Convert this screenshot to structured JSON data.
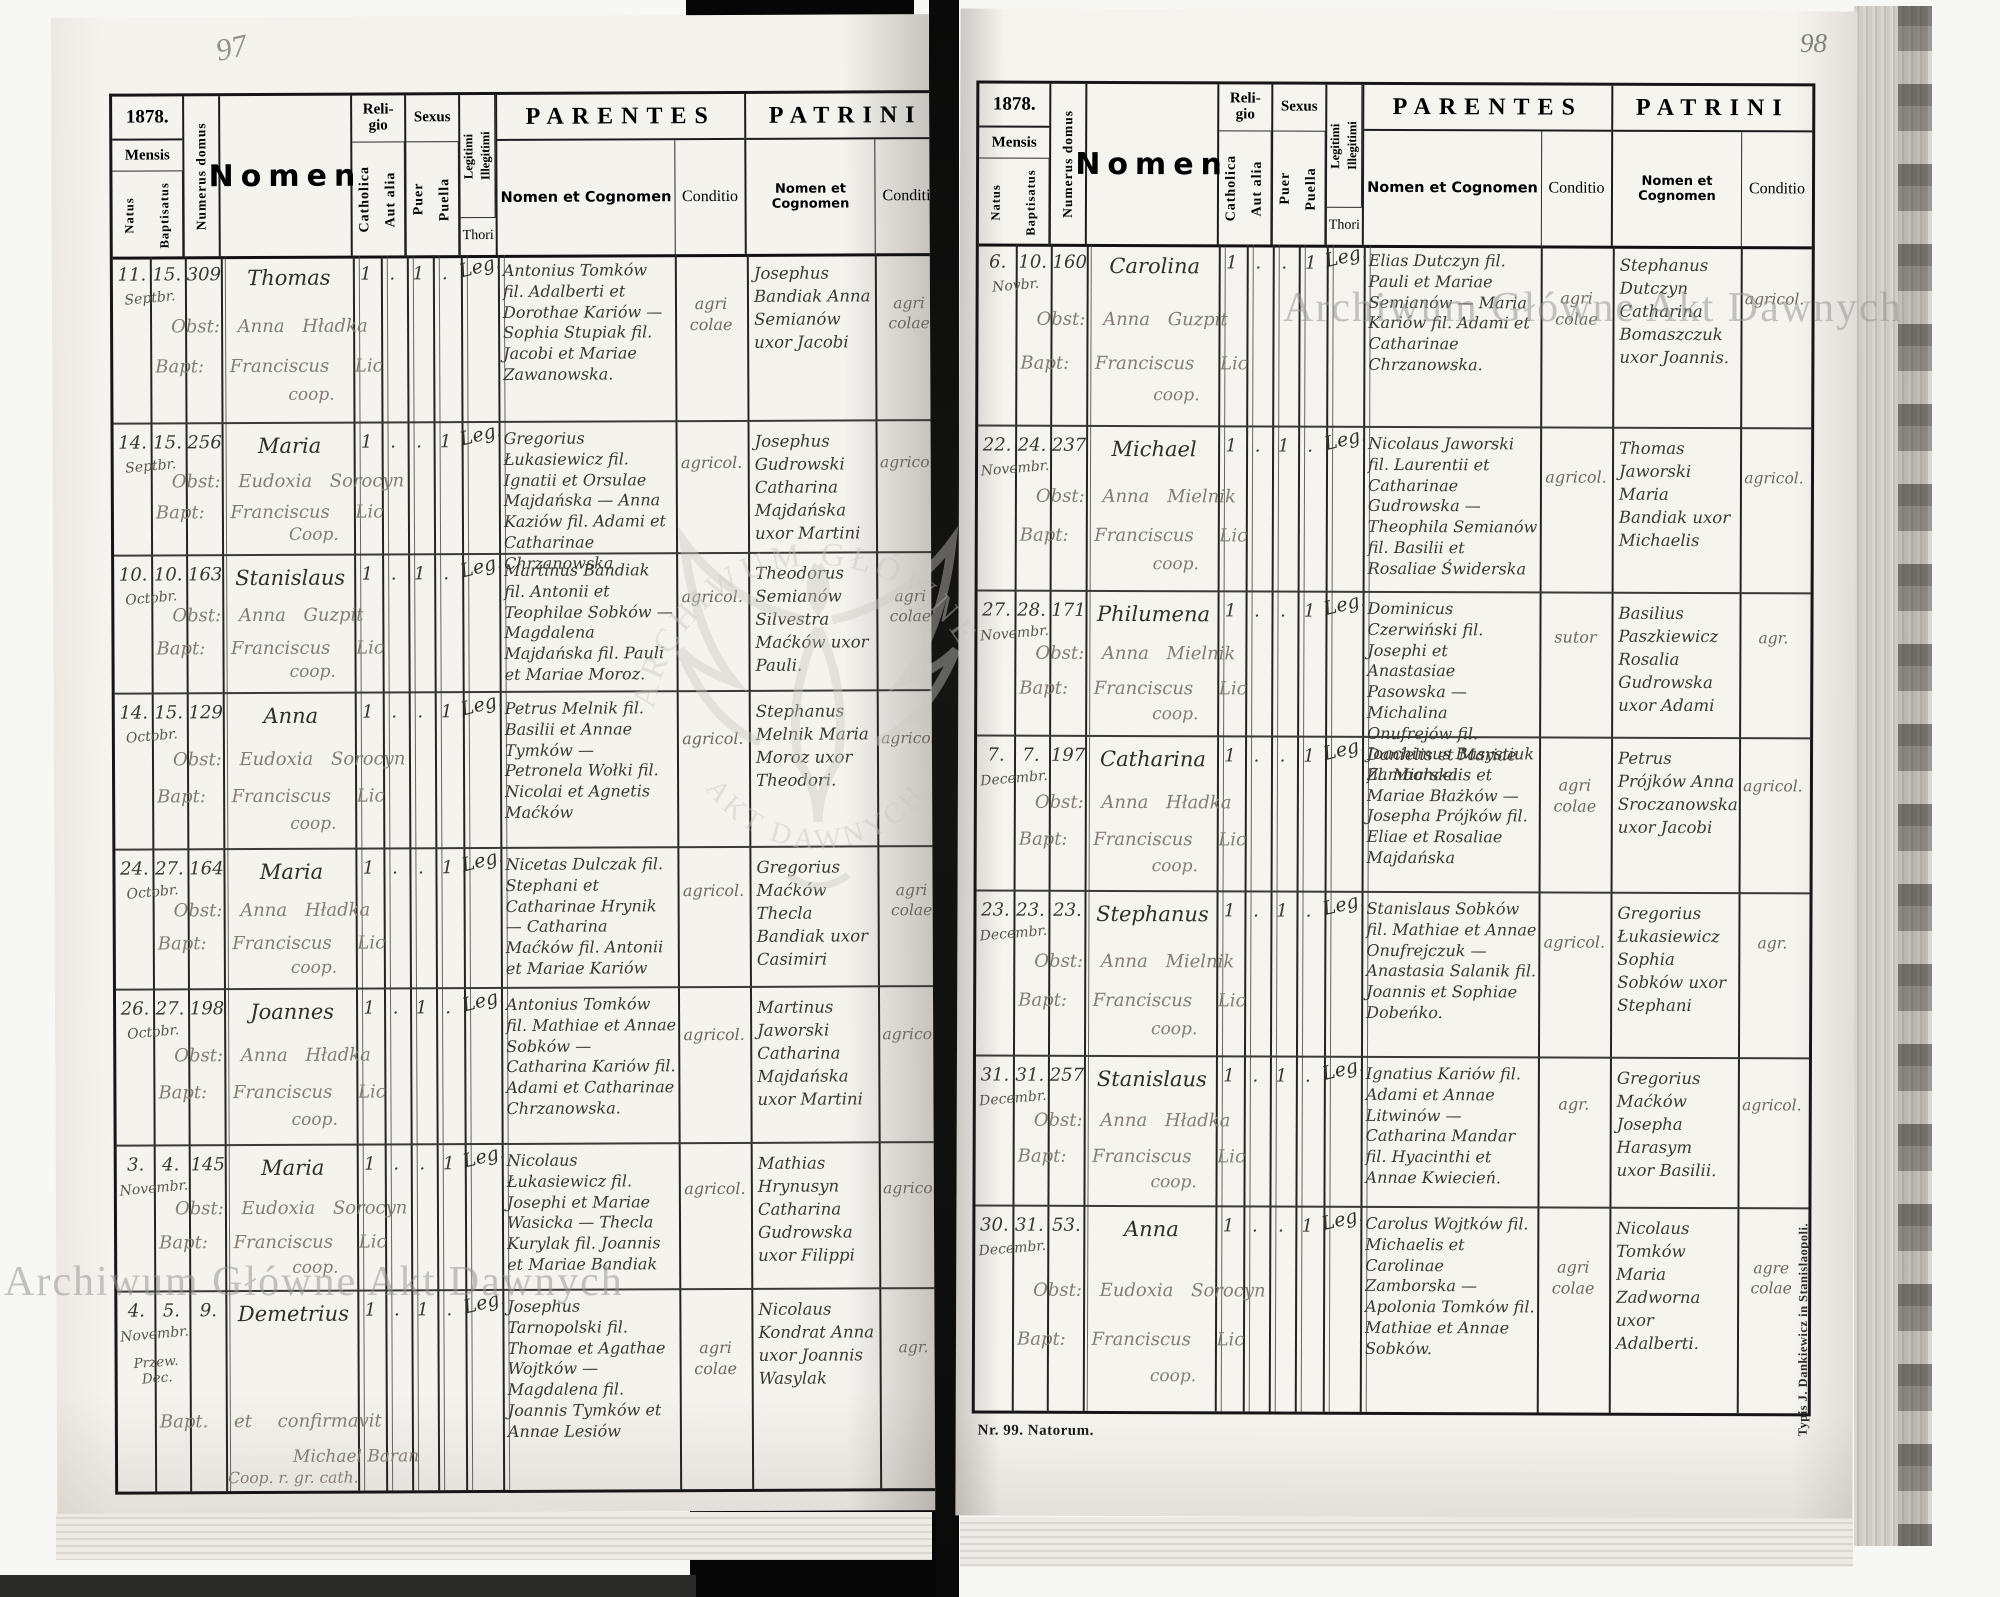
{
  "palette": {
    "paper": "#f5f3ee",
    "ink": "#3b3733",
    "ink_faded": "#847d75",
    "rule": "#242422",
    "background": "#f7f7f4",
    "void": "#060606"
  },
  "photo": {
    "left_page_number": "97",
    "right_page_number": "98"
  },
  "headers": {
    "year": "1878.",
    "mensis": "Mensis",
    "natus": "Natus",
    "baptisatus": "Baptisatus",
    "numerus_domus": "Numerus domus",
    "nomen": "Nomen",
    "religio": "Reli-\ngio",
    "catholica": "Catholica",
    "aut_alia": "Aut alia",
    "sexus": "Sexus",
    "puer": "Puer",
    "puella": "Puella",
    "legitimi": "Legitimi",
    "illegitimi": "Illegitimi",
    "thori": "Thori",
    "parentes": "PARENTES",
    "patrini": "PATRINI",
    "nomen_et_cognomen": "Nomen et Cognomen",
    "conditio": "Conditio"
  },
  "left_page": {
    "rows": [
      {
        "natus": "11.",
        "baptisatus": "15.",
        "month": "Septbr.",
        "numerus": "309",
        "name": "Thomas",
        "obst": "Obst: Anna Hładka",
        "bapt": "Bapt: Franciscus Lic",
        "bapt2": "coop.",
        "cath": "1",
        "aut": ".",
        "puer": "1",
        "puella": ".",
        "leg": "Leg.",
        "parentes": "Antonius Tomków fil. Adalberti et Dorothae Kariów — Sophia Stupiak fil. Jacobi et Mariae Zawanowska.",
        "par_cond": "agri colae",
        "patrini": "Josephus Bandiak Anna Semianów uxor Jacobi",
        "pat_cond": "agri colae"
      },
      {
        "natus": "14.",
        "baptisatus": "15.",
        "month": "Septbr.",
        "numerus": "256",
        "name": "Maria",
        "obst": "Obst: Eudoxia Sorocyn",
        "bapt": "Bapt: Franciscus Lic",
        "bapt2": "Coop.",
        "cath": "1",
        "aut": ".",
        "puer": ".",
        "puella": "1",
        "leg": "Leg.",
        "parentes": "Gregorius Łukasiewicz fil. Ignatii et Orsulae Majdańska — Anna Kaziów fil. Adami et Catharinae Chrzanowska",
        "par_cond": "agricol.",
        "patrini": "Josephus Gudrowski Catharina Majdańska uxor Martini",
        "pat_cond": "agricol."
      },
      {
        "natus": "10.",
        "baptisatus": "10.",
        "month": "Octobr.",
        "numerus": "163",
        "name": "Stanislaus",
        "obst": "Obst: Anna Guzpit",
        "bapt": "Bapt: Franciscus Lic",
        "bapt2": "coop.",
        "cath": "1",
        "aut": ".",
        "puer": "1",
        "puella": ".",
        "leg": "Leg.",
        "parentes": "Martinus Bandiak fil. Antonii et Teophilae Sobków — Magdalena Majdańska fil. Pauli et Mariae Moroz.",
        "par_cond": "agricol.",
        "patrini": "Theodorus Semianów Silvestra Maćków uxor Pauli.",
        "pat_cond": "agri colae"
      },
      {
        "natus": "14.",
        "baptisatus": "15.",
        "month": "Octobr.",
        "numerus": "129",
        "name": "Anna",
        "obst": "Obst: Eudoxia Sorocyn",
        "bapt": "Bapt: Franciscus Lic",
        "bapt2": "coop.",
        "cath": "1",
        "aut": ".",
        "puer": ".",
        "puella": "1",
        "leg": "Leg.",
        "parentes": "Petrus Melnik fil. Basilii et Annae Tymków — Petronela Wołki fil. Nicolai et Agnetis Maćków",
        "par_cond": "agricol.",
        "patrini": "Stephanus Melnik Maria Moroz uxor Theodori.",
        "pat_cond": "agricol."
      },
      {
        "natus": "24.",
        "baptisatus": "27.",
        "month": "Octobr.",
        "numerus": "164",
        "name": "Maria",
        "obst": "Obst: Anna Hładka",
        "bapt": "Bapt: Franciscus Lic",
        "bapt2": "coop.",
        "cath": "1",
        "aut": ".",
        "puer": ".",
        "puella": "1",
        "leg": "Leg.",
        "parentes": "Nicetas Dulczak fil. Stephani et Catharinae Hrynik — Catharina Maćków fil. Antonii et Mariae Kariów",
        "par_cond": "agricol.",
        "patrini": "Gregorius Maćków Thecla Bandiak uxor Casimiri",
        "pat_cond": "agri colae"
      },
      {
        "natus": "26.",
        "baptisatus": "27.",
        "month": "Octobr.",
        "numerus": "198",
        "name": "Joannes",
        "obst": "Obst: Anna Hładka",
        "bapt": "Bapt: Franciscus Lic",
        "bapt2": "coop.",
        "cath": "1",
        "aut": ".",
        "puer": "1",
        "puella": ".",
        "leg": "Leg.",
        "parentes": "Antonius Tomków fil. Mathiae et Annae Sobków — Catharina Kariów fil. Adami et Catharinae Chrzanowska.",
        "par_cond": "agricol.",
        "patrini": "Martinus Jaworski Catharina Majdańska uxor Martini",
        "pat_cond": "agricol."
      },
      {
        "natus": "3.",
        "baptisatus": "4.",
        "month": "Novembr.",
        "numerus": "145",
        "name": "Maria",
        "obst": "Obst: Eudoxia Sorocyn",
        "bapt": "Bapt: Franciscus Lic",
        "bapt2": "coop.",
        "cath": "1",
        "aut": ".",
        "puer": ".",
        "puella": "1",
        "leg": "Leg.",
        "parentes": "Nicolaus Łukasiewicz fil. Josephi et Mariae Wasicka — Thecla Kurylak fil. Joannis et Mariae Bandiak",
        "par_cond": "agricol.",
        "patrini": "Mathias Hrynusyn Catharina Gudrowska uxor Filippi",
        "pat_cond": "agricol."
      },
      {
        "natus": "4.",
        "baptisatus": "5.",
        "month": "Novembr.",
        "month2": "Przew. Dec.",
        "numerus": "9.",
        "name": "Demetrius",
        "bapt": "Bapt. et confirmavit",
        "bapt2": "Michael Baran",
        "bapt3": "Coop. r. gr. cath.",
        "cath": "1",
        "aut": ".",
        "puer": "1",
        "puella": ".",
        "leg": "Leg.",
        "parentes": "Josephus Tarnopolski fil. Thomae et Agathae Wojtków — Magdalena fil. Joannis Tymków et Annae Lesiów",
        "par_cond": "agri colae",
        "patrini": "Nicolaus Kondrat Anna uxor Joannis Wasylak",
        "pat_cond": "agr."
      }
    ]
  },
  "right_page": {
    "rows": [
      {
        "natus": "6.",
        "baptisatus": "10.",
        "month": "Novbr.",
        "numerus": "160",
        "name": "Carolina",
        "obst": "Obst: Anna Guzpit",
        "bapt": "Bapt: Franciscus Lic",
        "bapt2": "coop.",
        "cath": "1",
        "aut": ".",
        "puer": ".",
        "puella": "1",
        "leg": "Leg.",
        "parentes": "Elias Dutczyn fil. Pauli et Mariae Semianów — Maria Kariów fil. Adami et Catharinae Chrzanowska.",
        "par_cond": "agri colae",
        "patrini": "Stephanus Dutczyn Catharina Bomaszczuk uxor Joannis.",
        "pat_cond": "agricol."
      },
      {
        "natus": "22.",
        "baptisatus": "24.",
        "month": "Novembr.",
        "numerus": "237",
        "name": "Michael",
        "obst": "Obst: Anna Mielnik",
        "bapt": "Bapt: Franciscus Lic",
        "bapt2": "coop.",
        "cath": "1",
        "aut": ".",
        "puer": "1",
        "puella": ".",
        "leg": "Leg.",
        "parentes": "Nicolaus Jaworski fil. Laurentii et Catharinae Gudrowska — Theophila Semianów fil. Basilii et Rosaliae Świderska",
        "par_cond": "agricol.",
        "patrini": "Thomas Jaworski Maria Bandiak uxor Michaelis",
        "pat_cond": "agricol."
      },
      {
        "natus": "27.",
        "baptisatus": "28.",
        "month": "Novembr.",
        "numerus": "171",
        "name": "Philumena",
        "obst": "Obst: Anna Mielnik",
        "bapt": "Bapt: Franciscus Lic",
        "bapt2": "coop.",
        "cath": "1",
        "aut": ".",
        "puer": ".",
        "puella": "1",
        "leg": "Leg.",
        "parentes": "Dominicus Czerwiński fil. Josephi et Anastasiae Pasowska — Michalina Onufrejów fil. Danielis et Mariae Zamborska",
        "par_cond": "sutor",
        "patrini": "Basilius Paszkiewicz Rosalia Gudrowska uxor Adami",
        "pat_cond": "agr."
      },
      {
        "natus": "7.",
        "baptisatus": "7.",
        "month": "Decembr.",
        "numerus": "197",
        "name": "Catharina",
        "obst": "Obst: Anna Hładka",
        "bapt": "Bapt: Franciscus Lic",
        "bapt2": "coop.",
        "cath": "1",
        "aut": ".",
        "puer": ".",
        "puella": "1",
        "leg": "Leg.",
        "parentes": "Joachimus Basystiuk fil. Michaelis et Mariae Błażków — Josepha Prójków fil. Eliae et Rosaliae Majdańska",
        "par_cond": "agri colae",
        "patrini": "Petrus Prójków Anna Sroczanowska uxor Jacobi",
        "pat_cond": "agricol."
      },
      {
        "natus": "23.",
        "baptisatus": "23.",
        "month": "Decembr.",
        "numerus": "23.",
        "name": "Stephanus",
        "obst": "Obst: Anna Mielnik",
        "bapt": "Bapt: Franciscus Lic",
        "bapt2": "coop.",
        "cath": "1",
        "aut": ".",
        "puer": "1",
        "puella": ".",
        "leg": "Leg.",
        "parentes": "Stanislaus Sobków fil. Mathiae et Annae Onufrejczuk — Anastasia Salanik fil. Joannis et Sophiae Dobeńko.",
        "par_cond": "agricol.",
        "patrini": "Gregorius Łukasiewicz Sophia Sobków uxor Stephani",
        "pat_cond": "agr."
      },
      {
        "natus": "31.",
        "baptisatus": "31.",
        "month": "Decembr.",
        "numerus": "257",
        "name": "Stanislaus",
        "obst": "Obst: Anna Hładka",
        "bapt": "Bapt: Franciscus Lic",
        "bapt2": "coop.",
        "cath": "1",
        "aut": ".",
        "puer": "1",
        "puella": ".",
        "leg": "Leg.",
        "parentes": "Ignatius Kariów fil. Adami et Annae Litwinów — Catharina Mandar fil. Hyacinthi et Annae Kwiecień.",
        "par_cond": "agr.",
        "patrini": "Gregorius Maćków Josepha Harasym uxor Basilii.",
        "pat_cond": "agricol."
      },
      {
        "natus": "30.",
        "baptisatus": "31.",
        "month": "Decembr.",
        "numerus": "53.",
        "name": "Anna",
        "obst": "Obst: Eudoxia Sorocyn",
        "bapt": "Bapt: Franciscus Lic",
        "bapt2": "coop.",
        "cath": "1",
        "aut": ".",
        "puer": ".",
        "puella": "1",
        "leg": "Leg.",
        "parentes": "Carolus Wojtków fil. Michaelis et Carolinae Zamborska — Apolonia Tomków fil. Mathiae et Annae Sobków.",
        "par_cond": "agri colae",
        "patrini": "Nicolaus Tomków Maria Zadworna uxor Adalberti.",
        "pat_cond": "agre colae"
      }
    ],
    "footer_note": "Nr. 99. Natorum.",
    "imprint": "Typis J. Dankiewicz in Stanislaopoli."
  },
  "watermarks": {
    "diagonal_text": "Archiwum Główne Akt Dawnych",
    "seal_top": "ARCHIWUM GŁÓWNE",
    "seal_bottom": "AKT DAWNYCH"
  }
}
